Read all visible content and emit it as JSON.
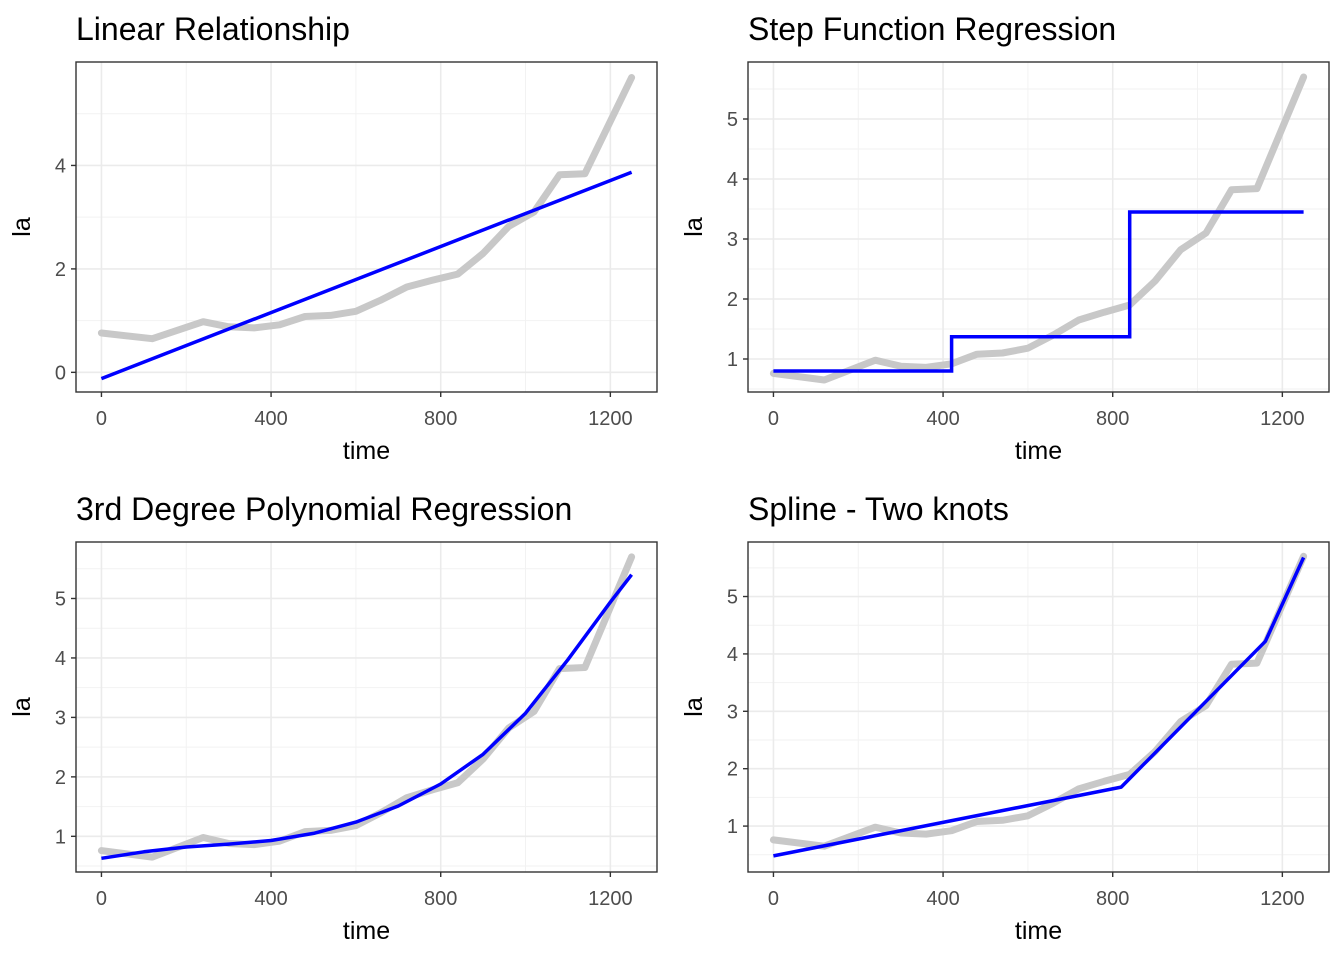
{
  "chart_data": [
    {
      "type": "line",
      "title": "Linear Relationship",
      "xlabel": "time",
      "ylabel": "la",
      "xlim": [
        -60,
        1310
      ],
      "ylim": [
        -0.38,
        6.0
      ],
      "xticks": [
        0,
        400,
        800,
        1200
      ],
      "xtick_labels": [
        "0",
        "400",
        "800",
        "1200"
      ],
      "yticks": [
        0,
        2,
        4
      ],
      "ytick_labels": [
        "0",
        "2",
        "4"
      ],
      "grid": true,
      "series": [
        {
          "color": "#c8c8c8",
          "x": [
            0,
            120,
            240,
            300,
            360,
            420,
            480,
            540,
            600,
            660,
            720,
            780,
            840,
            900,
            960,
            1020,
            1080,
            1140,
            1250
          ],
          "y": [
            0.76,
            0.65,
            0.98,
            0.88,
            0.86,
            0.92,
            1.08,
            1.1,
            1.18,
            1.4,
            1.65,
            1.78,
            1.9,
            2.3,
            2.82,
            3.1,
            3.82,
            3.84,
            5.7
          ]
        },
        {
          "color": "#0000ff",
          "x": [
            0,
            1250
          ],
          "y": [
            -0.12,
            3.87
          ]
        }
      ]
    },
    {
      "type": "line",
      "title": "Step Function Regression",
      "xlabel": "time",
      "ylabel": "la",
      "xlim": [
        -60,
        1310
      ],
      "ylim": [
        0.45,
        5.95
      ],
      "xticks": [
        0,
        400,
        800,
        1200
      ],
      "xtick_labels": [
        "0",
        "400",
        "800",
        "1200"
      ],
      "yticks": [
        1,
        2,
        3,
        4,
        5
      ],
      "ytick_labels": [
        "1",
        "2",
        "3",
        "4",
        "5"
      ],
      "grid": true,
      "series": [
        {
          "color": "#c8c8c8",
          "x": [
            0,
            120,
            240,
            300,
            360,
            420,
            480,
            540,
            600,
            660,
            720,
            780,
            840,
            900,
            960,
            1020,
            1080,
            1140,
            1250
          ],
          "y": [
            0.76,
            0.65,
            0.98,
            0.88,
            0.86,
            0.92,
            1.08,
            1.1,
            1.18,
            1.4,
            1.65,
            1.78,
            1.9,
            2.3,
            2.82,
            3.1,
            3.82,
            3.84,
            5.7
          ]
        },
        {
          "color": "#0000ff",
          "x": [
            0,
            420,
            420,
            840,
            840,
            1250
          ],
          "y": [
            0.8,
            0.8,
            1.37,
            1.37,
            3.45,
            3.45
          ]
        }
      ]
    },
    {
      "type": "line",
      "title": "3rd Degree Polynomial Regression",
      "xlabel": "time",
      "ylabel": "la",
      "xlim": [
        -60,
        1310
      ],
      "ylim": [
        0.4,
        5.95
      ],
      "xticks": [
        0,
        400,
        800,
        1200
      ],
      "xtick_labels": [
        "0",
        "400",
        "800",
        "1200"
      ],
      "yticks": [
        1,
        2,
        3,
        4,
        5
      ],
      "ytick_labels": [
        "1",
        "2",
        "3",
        "4",
        "5"
      ],
      "grid": true,
      "series": [
        {
          "color": "#c8c8c8",
          "x": [
            0,
            120,
            240,
            300,
            360,
            420,
            480,
            540,
            600,
            660,
            720,
            780,
            840,
            900,
            960,
            1020,
            1080,
            1140,
            1250
          ],
          "y": [
            0.76,
            0.65,
            0.98,
            0.88,
            0.86,
            0.92,
            1.08,
            1.1,
            1.18,
            1.4,
            1.65,
            1.78,
            1.9,
            2.3,
            2.82,
            3.1,
            3.82,
            3.84,
            5.7
          ]
        },
        {
          "color": "#0000ff",
          "x": [
            0,
            100,
            200,
            300,
            400,
            500,
            600,
            700,
            800,
            900,
            1000,
            1100,
            1200,
            1250
          ],
          "y": [
            0.63,
            0.74,
            0.82,
            0.87,
            0.93,
            1.05,
            1.24,
            1.51,
            1.88,
            2.38,
            3.07,
            3.97,
            4.94,
            5.4
          ]
        }
      ]
    },
    {
      "type": "line",
      "title": "Spline - Two knots",
      "xlabel": "time",
      "ylabel": "la",
      "xlim": [
        -60,
        1310
      ],
      "ylim": [
        0.2,
        5.95
      ],
      "xticks": [
        0,
        400,
        800,
        1200
      ],
      "xtick_labels": [
        "0",
        "400",
        "800",
        "1200"
      ],
      "yticks": [
        1,
        2,
        3,
        4,
        5
      ],
      "ytick_labels": [
        "1",
        "2",
        "3",
        "4",
        "5"
      ],
      "grid": true,
      "series": [
        {
          "color": "#c8c8c8",
          "x": [
            0,
            120,
            240,
            300,
            360,
            420,
            480,
            540,
            600,
            660,
            720,
            780,
            840,
            900,
            960,
            1020,
            1080,
            1140,
            1250
          ],
          "y": [
            0.76,
            0.65,
            0.98,
            0.88,
            0.86,
            0.92,
            1.08,
            1.1,
            1.18,
            1.4,
            1.65,
            1.78,
            1.9,
            2.3,
            2.82,
            3.1,
            3.82,
            3.84,
            5.7
          ]
        },
        {
          "color": "#0000ff",
          "x": [
            0,
            820,
            1160,
            1250
          ],
          "y": [
            0.48,
            1.68,
            4.22,
            5.68
          ]
        }
      ]
    }
  ]
}
